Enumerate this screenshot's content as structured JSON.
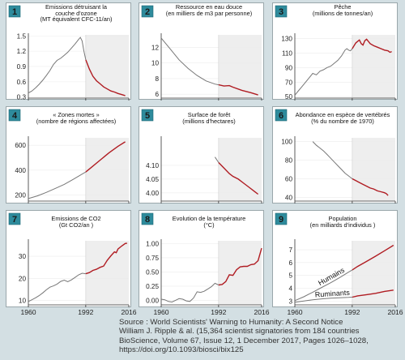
{
  "colors": {
    "background": "#d3dfe3",
    "panel": "#ffffff",
    "post1992_shade": "#eeeeee",
    "badge": "#2e8b9c",
    "line_before_1992": "#777777",
    "line_after_1992": "#b01c22"
  },
  "chart_data": [
    {
      "type": "line",
      "number": "1",
      "title": [
        "Emissions détruisant la",
        "couche d'ozone",
        "(MT équivalent CFC-11/an)"
      ],
      "xlim": [
        1960,
        2016
      ],
      "ylim": [
        0.28,
        1.52
      ],
      "yticks": [
        0.3,
        0.6,
        0.9,
        1.2,
        1.5
      ],
      "ytick_labels": [
        "0.3",
        "0.6",
        "0.9",
        "1.2",
        "1.5"
      ],
      "x": [
        1960,
        1962,
        1964,
        1966,
        1968,
        1970,
        1972,
        1974,
        1976,
        1978,
        1980,
        1982,
        1984,
        1986,
        1988,
        1989,
        1990,
        1991,
        1992,
        1994,
        1996,
        1998,
        2000,
        2002,
        2004,
        2006,
        2008,
        2010,
        2012,
        2014
      ],
      "y": [
        0.38,
        0.42,
        0.48,
        0.55,
        0.63,
        0.72,
        0.82,
        0.94,
        1.02,
        1.06,
        1.12,
        1.18,
        1.26,
        1.34,
        1.43,
        1.47,
        1.4,
        1.2,
        1.03,
        0.85,
        0.71,
        0.62,
        0.56,
        0.5,
        0.46,
        0.42,
        0.4,
        0.37,
        0.35,
        0.33
      ]
    },
    {
      "type": "line",
      "number": "2",
      "title": [
        "Ressource en eau douce",
        "(en milliers de m3 par personne)"
      ],
      "xlim": [
        1960,
        2016
      ],
      "ylim": [
        5.5,
        13.6
      ],
      "yticks": [
        6,
        8,
        10,
        12
      ],
      "ytick_labels": [
        "6",
        "8",
        "10",
        "12"
      ],
      "x": [
        1960,
        1965,
        1970,
        1975,
        1980,
        1985,
        1990,
        1992,
        1995,
        1998,
        2000,
        2005,
        2010,
        2014
      ],
      "y": [
        13.2,
        11.8,
        10.4,
        9.3,
        8.4,
        7.7,
        7.3,
        7.2,
        7.05,
        7.1,
        6.9,
        6.5,
        6.2,
        5.9
      ]
    },
    {
      "type": "line",
      "number": "3",
      "title": [
        "Pêche",
        "(millions de tonnes/an)"
      ],
      "xlim": [
        1960,
        2016
      ],
      "ylim": [
        48,
        135
      ],
      "yticks": [
        50,
        70,
        90,
        110,
        130
      ],
      "ytick_labels": [
        "50",
        "70",
        "90",
        "110",
        "130"
      ],
      "x": [
        1960,
        1962,
        1964,
        1966,
        1968,
        1970,
        1972,
        1974,
        1976,
        1978,
        1980,
        1982,
        1984,
        1986,
        1988,
        1989,
        1990,
        1991,
        1992,
        1993,
        1994,
        1995,
        1996,
        1997,
        1998,
        1999,
        2000,
        2001,
        2002,
        2004,
        2006,
        2008,
        2010,
        2012,
        2013,
        2014
      ],
      "y": [
        52,
        58,
        64,
        70,
        76,
        82,
        80,
        85,
        87,
        90,
        92,
        96,
        100,
        106,
        114,
        116,
        114,
        113,
        116,
        120,
        124,
        126,
        128,
        123,
        121,
        127,
        129,
        126,
        123,
        120,
        118,
        116,
        114,
        113,
        111,
        112
      ]
    },
    {
      "type": "line",
      "number": "4",
      "title": [
        "« Zones mortes »",
        "(nombre de régions affectées)"
      ],
      "xlim": [
        1960,
        2016
      ],
      "ylim": [
        150,
        660
      ],
      "yticks": [
        200,
        400,
        600
      ],
      "ytick_labels": [
        "200",
        "400",
        "600"
      ],
      "x": [
        1960,
        1965,
        1970,
        1975,
        1980,
        1985,
        1990,
        1992,
        1995,
        2000,
        2005,
        2010,
        2014
      ],
      "y": [
        170,
        192,
        220,
        252,
        285,
        325,
        368,
        385,
        420,
        480,
        540,
        592,
        628
      ]
    },
    {
      "type": "line",
      "number": "5",
      "title": [
        "Surface de forêt",
        "(millions d'hectares)"
      ],
      "xlim": [
        1960,
        2016
      ],
      "ylim": [
        3.97,
        4.2
      ],
      "yticks": [
        4.0,
        4.05,
        4.1
      ],
      "ytick_labels": [
        "4.00",
        "4.05",
        "4.10"
      ],
      "x": [
        1990,
        1992,
        1995,
        1998,
        2000,
        2003,
        2006,
        2009,
        2012,
        2014
      ],
      "y": [
        4.13,
        4.11,
        4.09,
        4.07,
        4.06,
        4.05,
        4.035,
        4.02,
        4.005,
        3.995
      ]
    },
    {
      "type": "line",
      "number": "6",
      "title": [
        "Abondance en espèce de vertébrés",
        "(% du nombre de 1970)"
      ],
      "xlim": [
        1960,
        2016
      ],
      "ylim": [
        36,
        104
      ],
      "yticks": [
        40,
        60,
        80,
        100
      ],
      "ytick_labels": [
        "40",
        "60",
        "80",
        "100"
      ],
      "x": [
        1970,
        1972,
        1974,
        1976,
        1978,
        1980,
        1982,
        1984,
        1986,
        1988,
        1990,
        1992,
        1994,
        1996,
        1998,
        2000,
        2002,
        2004,
        2006,
        2008,
        2010,
        2011,
        2012
      ],
      "y": [
        100,
        96,
        93,
        90,
        86,
        82,
        78,
        74,
        70,
        66,
        63,
        60,
        58,
        56,
        54,
        52,
        50,
        49,
        47,
        46,
        45,
        44,
        42
      ]
    },
    {
      "type": "line",
      "number": "7",
      "title": [
        "Emissions de CO2",
        "(Gt CO2/an )"
      ],
      "xlim": [
        1960,
        2016
      ],
      "ylim": [
        8,
        37
      ],
      "yticks": [
        10,
        20,
        30
      ],
      "ytick_labels": [
        "10",
        "20",
        "30"
      ],
      "x": [
        1960,
        1962,
        1964,
        1966,
        1968,
        1970,
        1972,
        1974,
        1976,
        1978,
        1980,
        1982,
        1984,
        1986,
        1988,
        1990,
        1992,
        1994,
        1996,
        1998,
        2000,
        2002,
        2004,
        2006,
        2008,
        2009,
        2010,
        2012,
        2014,
        2015
      ],
      "y": [
        9.5,
        10.3,
        11.2,
        12.2,
        13.4,
        14.8,
        16,
        16.6,
        17.4,
        18.6,
        19.2,
        18.5,
        19.3,
        20.4,
        21.6,
        22.3,
        22.1,
        22.6,
        23.6,
        24.1,
        25,
        25.6,
        28.2,
        30.2,
        32,
        31.6,
        33.3,
        34.6,
        35.8,
        35.9
      ]
    },
    {
      "type": "line",
      "number": "8",
      "title": [
        "Evolution de la température",
        "(°C)"
      ],
      "xlim": [
        1960,
        2016
      ],
      "ylim": [
        -0.08,
        1.05
      ],
      "yticks": [
        0.0,
        0.25,
        0.5,
        0.75,
        1.0
      ],
      "ytick_labels": [
        "0.00",
        "0.25",
        "0.50",
        "0.75",
        "1.00"
      ],
      "x": [
        1960,
        1962,
        1964,
        1966,
        1968,
        1970,
        1972,
        1974,
        1976,
        1978,
        1980,
        1982,
        1984,
        1986,
        1988,
        1990,
        1992,
        1994,
        1996,
        1998,
        2000,
        2002,
        2004,
        2006,
        2008,
        2010,
        2012,
        2014,
        2016
      ],
      "y": [
        0.02,
        0.01,
        -0.02,
        -0.03,
        0.0,
        0.03,
        0.02,
        -0.01,
        -0.02,
        0.04,
        0.15,
        0.14,
        0.16,
        0.2,
        0.24,
        0.3,
        0.27,
        0.28,
        0.33,
        0.45,
        0.44,
        0.54,
        0.59,
        0.6,
        0.6,
        0.63,
        0.64,
        0.7,
        0.92
      ]
    },
    {
      "type": "line",
      "number": "9",
      "title": [
        "Population",
        "(en milliards d'individus )"
      ],
      "xlim": [
        1960,
        2016
      ],
      "ylim": [
        2.7,
        7.7
      ],
      "yticks": [
        3,
        4,
        5,
        6,
        7
      ],
      "ytick_labels": [
        "3",
        "4",
        "5",
        "6",
        "7"
      ],
      "series": [
        {
          "name": "Humains",
          "x": [
            1960,
            1965,
            1970,
            1975,
            1980,
            1985,
            1990,
            1992,
            1995,
            2000,
            2005,
            2010,
            2015
          ],
          "y": [
            3.03,
            3.33,
            3.69,
            4.06,
            4.43,
            4.83,
            5.26,
            5.43,
            5.7,
            6.09,
            6.5,
            6.92,
            7.35
          ]
        },
        {
          "name": "Ruminants",
          "x": [
            1960,
            1965,
            1970,
            1975,
            1980,
            1985,
            1990,
            1992,
            1995,
            2000,
            2005,
            2010,
            2015
          ],
          "y": [
            2.9,
            3.0,
            3.1,
            3.17,
            3.22,
            3.26,
            3.28,
            3.3,
            3.4,
            3.5,
            3.6,
            3.75,
            3.85
          ]
        }
      ]
    }
  ],
  "x_axis": {
    "tick_years": [
      1960,
      1992,
      2016
    ],
    "tick_labels": [
      "1960",
      "1992",
      "2016"
    ]
  },
  "source": {
    "line1": "Source  :          World Scientists' Warning to Humanity: A Second Notice",
    "line2": "William J. Ripple & al.  (15,364 scientist signatories from 184 countries",
    "line3": "BioScience, Volume 67, Issue 12, 1 December 2017, Pages 1026–1028,",
    "line4": "https://doi.org/10.1093/biosci/bix125"
  }
}
